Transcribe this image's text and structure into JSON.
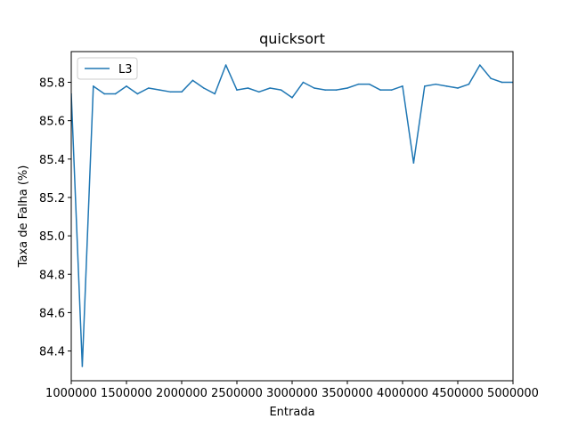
{
  "chart_data": {
    "type": "line",
    "title": "quicksort",
    "xlabel": "Entrada",
    "ylabel": "Taxa de Falha (%)",
    "xlim": [
      1000000,
      5000000
    ],
    "ylim": [
      84.245,
      85.96
    ],
    "xticks": [
      1000000,
      1500000,
      2000000,
      2500000,
      3000000,
      3500000,
      4000000,
      4500000,
      5000000
    ],
    "yticks": [
      84.4,
      84.6,
      84.8,
      85.0,
      85.2,
      85.4,
      85.6,
      85.8
    ],
    "yticks_labels": [
      "84.4",
      "84.6",
      "84.8",
      "85.0",
      "85.2",
      "85.4",
      "85.6",
      "85.8"
    ],
    "legend": "upper-left",
    "grid": false,
    "series": [
      {
        "name": "L3",
        "color": "#1f77b4",
        "x": [
          1000000,
          1100000,
          1200000,
          1300000,
          1400000,
          1500000,
          1600000,
          1700000,
          1800000,
          1900000,
          2000000,
          2100000,
          2200000,
          2300000,
          2400000,
          2500000,
          2600000,
          2700000,
          2800000,
          2900000,
          3000000,
          3100000,
          3200000,
          3300000,
          3400000,
          3500000,
          3600000,
          3700000,
          3800000,
          3900000,
          4000000,
          4100000,
          4200000,
          4300000,
          4400000,
          4500000,
          4600000,
          4700000,
          4800000,
          4900000,
          5000000
        ],
        "y": [
          85.74,
          84.32,
          85.78,
          85.74,
          85.74,
          85.78,
          85.74,
          85.77,
          85.76,
          85.75,
          85.75,
          85.81,
          85.77,
          85.74,
          85.89,
          85.76,
          85.77,
          85.75,
          85.77,
          85.76,
          85.72,
          85.8,
          85.77,
          85.76,
          85.76,
          85.77,
          85.79,
          85.79,
          85.76,
          85.76,
          85.78,
          85.38,
          85.78,
          85.79,
          85.78,
          85.77,
          85.79,
          85.89,
          85.82,
          85.8,
          85.8
        ]
      }
    ]
  }
}
